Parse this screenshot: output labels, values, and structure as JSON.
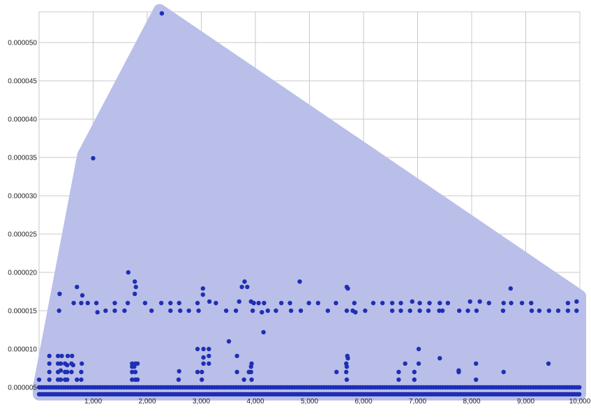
{
  "chart_data": {
    "type": "scatter",
    "title": "",
    "xlabel": "",
    "ylabel": "",
    "xlim": [
      0,
      10000
    ],
    "ylim": [
      4e-06,
      5.4e-05
    ],
    "grid": true,
    "colors": {
      "point": "#1f2fb3",
      "hull_fill": "#b9bfe9",
      "hull_stroke": "#b9bfe9",
      "grid": "#c8c8c8"
    },
    "x_ticks": [
      1000,
      2000,
      3000,
      4000,
      5000,
      6000,
      7000,
      8000,
      9000,
      10000
    ],
    "x_tick_labels": [
      "1,000",
      "2,000",
      "3,000",
      "4,000",
      "5,000",
      "6,000",
      "7,000",
      "8,000",
      "9,000",
      "10,000"
    ],
    "y_ticks": [
      5e-06,
      1e-05,
      1.5e-05,
      2e-05,
      2.5e-05,
      3e-05,
      3.5e-05,
      4e-05,
      4.5e-05,
      5e-05
    ],
    "y_tick_labels": [
      "0.000005",
      "0.000010",
      "0.000015",
      "0.000020",
      "0.000025",
      "0.000030",
      "0.000035",
      "0.000040",
      "0.000045",
      "0.000050"
    ],
    "hull": [
      [
        0,
        4.1e-06
      ],
      [
        0,
        5e-06
      ],
      [
        820,
        3.53e-05
      ],
      [
        2230,
        5.42e-05
      ],
      [
        10000,
        1.69e-05
      ],
      [
        10000,
        4.1e-06
      ]
    ],
    "series": [
      {
        "values_dense_rows": [
          {
            "y": 4.1e-06,
            "x_start": 0,
            "x_end": 10000,
            "step": 30
          },
          {
            "y": 5e-06,
            "x_start": 0,
            "x_end": 10000,
            "step": 45
          }
        ],
        "points": [
          [
            2270,
            5.38e-05
          ],
          [
            1000,
            3.49e-05
          ],
          [
            1650,
            2e-05
          ],
          [
            4820,
            1.88e-05
          ],
          [
            3800,
            1.88e-05
          ],
          [
            1770,
            1.88e-05
          ],
          [
            380,
            1.72e-05
          ],
          [
            700,
            1.81e-05
          ],
          [
            1790,
            1.81e-05
          ],
          [
            3750,
            1.81e-05
          ],
          [
            3850,
            1.81e-05
          ],
          [
            3030,
            1.79e-05
          ],
          [
            5690,
            1.81e-05
          ],
          [
            5710,
            1.79e-05
          ],
          [
            8720,
            1.79e-05
          ],
          [
            800,
            1.7e-05
          ],
          [
            1770,
            1.72e-05
          ],
          [
            3030,
            1.71e-05
          ],
          [
            6900,
            1.62e-05
          ],
          [
            7970,
            1.62e-05
          ],
          [
            9940,
            1.62e-05
          ],
          [
            3150,
            1.62e-05
          ],
          [
            3700,
            1.62e-05
          ],
          [
            3920,
            1.62e-05
          ],
          [
            8150,
            1.62e-05
          ],
          [
            640,
            1.6e-05
          ],
          [
            780,
            1.6e-05
          ],
          [
            900,
            1.6e-05
          ],
          [
            1060,
            1.6e-05
          ],
          [
            1400,
            1.6e-05
          ],
          [
            1640,
            1.6e-05
          ],
          [
            1960,
            1.6e-05
          ],
          [
            2260,
            1.6e-05
          ],
          [
            2430,
            1.6e-05
          ],
          [
            2590,
            1.6e-05
          ],
          [
            2930,
            1.6e-05
          ],
          [
            3270,
            1.6e-05
          ],
          [
            3970,
            1.6e-05
          ],
          [
            4060,
            1.6e-05
          ],
          [
            4160,
            1.6e-05
          ],
          [
            4480,
            1.6e-05
          ],
          [
            4640,
            1.6e-05
          ],
          [
            4990,
            1.6e-05
          ],
          [
            5160,
            1.6e-05
          ],
          [
            5490,
            1.6e-05
          ],
          [
            5830,
            1.6e-05
          ],
          [
            6180,
            1.6e-05
          ],
          [
            6350,
            1.6e-05
          ],
          [
            6530,
            1.6e-05
          ],
          [
            6690,
            1.6e-05
          ],
          [
            7040,
            1.6e-05
          ],
          [
            7220,
            1.6e-05
          ],
          [
            7410,
            1.6e-05
          ],
          [
            7560,
            1.6e-05
          ],
          [
            8320,
            1.6e-05
          ],
          [
            8590,
            1.6e-05
          ],
          [
            8730,
            1.6e-05
          ],
          [
            8930,
            1.6e-05
          ],
          [
            9100,
            1.6e-05
          ],
          [
            9780,
            1.6e-05
          ],
          [
            370,
            1.5e-05
          ],
          [
            1080,
            1.48e-05
          ],
          [
            1230,
            1.5e-05
          ],
          [
            1400,
            1.5e-05
          ],
          [
            1580,
            1.5e-05
          ],
          [
            2080,
            1.5e-05
          ],
          [
            2430,
            1.5e-05
          ],
          [
            2610,
            1.5e-05
          ],
          [
            2770,
            1.5e-05
          ],
          [
            2950,
            1.5e-05
          ],
          [
            3460,
            1.5e-05
          ],
          [
            3640,
            1.5e-05
          ],
          [
            3950,
            1.5e-05
          ],
          [
            4120,
            1.48e-05
          ],
          [
            4230,
            1.5e-05
          ],
          [
            4380,
            1.5e-05
          ],
          [
            4660,
            1.5e-05
          ],
          [
            4840,
            1.5e-05
          ],
          [
            5340,
            1.5e-05
          ],
          [
            5690,
            1.5e-05
          ],
          [
            5800,
            1.5e-05
          ],
          [
            5850,
            1.48e-05
          ],
          [
            6030,
            1.5e-05
          ],
          [
            6530,
            1.5e-05
          ],
          [
            6690,
            1.5e-05
          ],
          [
            6860,
            1.5e-05
          ],
          [
            7040,
            1.5e-05
          ],
          [
            7200,
            1.5e-05
          ],
          [
            7400,
            1.5e-05
          ],
          [
            7460,
            1.5e-05
          ],
          [
            7770,
            1.5e-05
          ],
          [
            7930,
            1.5e-05
          ],
          [
            8090,
            1.5e-05
          ],
          [
            8580,
            1.5e-05
          ],
          [
            9110,
            1.5e-05
          ],
          [
            9250,
            1.5e-05
          ],
          [
            9430,
            1.5e-05
          ],
          [
            9600,
            1.5e-05
          ],
          [
            9780,
            1.5e-05
          ],
          [
            9940,
            1.5e-05
          ],
          [
            4150,
            1.22e-05
          ],
          [
            3510,
            1.1e-05
          ],
          [
            2930,
            1e-05
          ],
          [
            3040,
            1e-05
          ],
          [
            3140,
            1e-05
          ],
          [
            7020,
            1e-05
          ],
          [
            3040,
            8.9e-06
          ],
          [
            3140,
            9.1e-06
          ],
          [
            3660,
            9.1e-06
          ],
          [
            5700,
            9.1e-06
          ],
          [
            7410,
            8.8e-06
          ],
          [
            5710,
            8.8e-06
          ],
          [
            190,
            9.1e-06
          ],
          [
            350,
            9.1e-06
          ],
          [
            420,
            9.1e-06
          ],
          [
            530,
            9.1e-06
          ],
          [
            610,
            9.1e-06
          ],
          [
            190,
            8.1e-06
          ],
          [
            350,
            8.1e-06
          ],
          [
            400,
            8.1e-06
          ],
          [
            480,
            8.1e-06
          ],
          [
            520,
            7.9e-06
          ],
          [
            600,
            8.1e-06
          ],
          [
            630,
            7.9e-06
          ],
          [
            790,
            8.1e-06
          ],
          [
            1720,
            8.1e-06
          ],
          [
            1780,
            8.1e-06
          ],
          [
            1820,
            8.1e-06
          ],
          [
            3040,
            8.1e-06
          ],
          [
            3140,
            8.1e-06
          ],
          [
            3930,
            8.1e-06
          ],
          [
            5680,
            8.1e-06
          ],
          [
            6770,
            8.1e-06
          ],
          [
            7020,
            8.1e-06
          ],
          [
            8080,
            8.1e-06
          ],
          [
            9420,
            8.1e-06
          ],
          [
            3920,
            7.7e-06
          ],
          [
            5690,
            7.7e-06
          ],
          [
            1720,
            7.7e-06
          ],
          [
            1760,
            7.7e-06
          ],
          [
            190,
            7e-06
          ],
          [
            350,
            7e-06
          ],
          [
            400,
            7.2e-06
          ],
          [
            480,
            7e-06
          ],
          [
            520,
            7e-06
          ],
          [
            600,
            7e-06
          ],
          [
            780,
            7e-06
          ],
          [
            1720,
            7e-06
          ],
          [
            1780,
            7e-06
          ],
          [
            2590,
            7.1e-06
          ],
          [
            2930,
            7e-06
          ],
          [
            3010,
            7e-06
          ],
          [
            3660,
            7e-06
          ],
          [
            3880,
            7e-06
          ],
          [
            3920,
            7e-06
          ],
          [
            5500,
            7e-06
          ],
          [
            5680,
            7e-06
          ],
          [
            6650,
            7e-06
          ],
          [
            6940,
            7e-06
          ],
          [
            7760,
            7e-06
          ],
          [
            7760,
            7.2e-06
          ],
          [
            8590,
            7e-06
          ],
          [
            190,
            6e-06
          ],
          [
            350,
            6e-06
          ],
          [
            400,
            6e-06
          ],
          [
            480,
            6e-06
          ],
          [
            520,
            6e-06
          ],
          [
            700,
            6e-06
          ],
          [
            780,
            6e-06
          ],
          [
            1720,
            6e-06
          ],
          [
            1780,
            6e-06
          ],
          [
            1820,
            6e-06
          ],
          [
            2580,
            6e-06
          ],
          [
            3010,
            6e-06
          ],
          [
            3790,
            6e-06
          ],
          [
            3930,
            6e-06
          ],
          [
            5690,
            6e-06
          ],
          [
            6650,
            6e-06
          ],
          [
            6940,
            6e-06
          ],
          [
            8080,
            6e-06
          ],
          [
            0,
            6e-06
          ]
        ]
      }
    ]
  }
}
